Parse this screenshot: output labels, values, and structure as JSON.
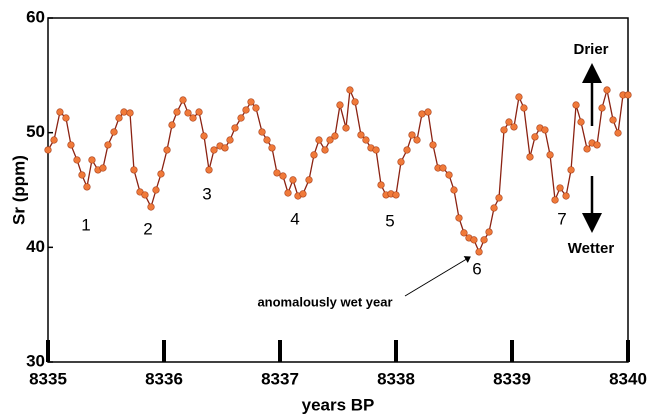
{
  "chart_data": {
    "type": "line",
    "xlabel": "years BP",
    "ylabel": "Sr (ppm)",
    "x": [
      8335,
      8335.052,
      8335.103,
      8335.155,
      8335.198,
      8335.25,
      8335.293,
      8335.336,
      8335.379,
      8335.431,
      8335.474,
      8335.517,
      8335.569,
      8335.612,
      8335.655,
      8335.707,
      8335.741,
      8335.793,
      8335.836,
      8335.888,
      8335.931,
      8335.974,
      8336.026,
      8336.069,
      8336.112,
      8336.164,
      8336.207,
      8336.25,
      8336.302,
      8336.345,
      8336.388,
      8336.431,
      8336.483,
      8336.526,
      8336.569,
      8336.612,
      8336.664,
      8336.707,
      8336.75,
      8336.793,
      8336.845,
      8336.888,
      8336.931,
      8336.974,
      8337.026,
      8337.069,
      8337.112,
      8337.155,
      8337.198,
      8337.25,
      8337.293,
      8337.336,
      8337.388,
      8337.431,
      8337.474,
      8337.517,
      8337.569,
      8337.603,
      8337.647,
      8337.698,
      8337.741,
      8337.784,
      8337.828,
      8337.871,
      8337.914,
      8337.957,
      8338,
      8338.043,
      8338.095,
      8338.138,
      8338.181,
      8338.224,
      8338.276,
      8338.319,
      8338.362,
      8338.405,
      8338.457,
      8338.5,
      8338.543,
      8338.586,
      8338.629,
      8338.672,
      8338.716,
      8338.759,
      8338.802,
      8338.845,
      8338.888,
      8338.931,
      8338.974,
      8339.017,
      8339.06,
      8339.103,
      8339.155,
      8339.198,
      8339.241,
      8339.284,
      8339.328,
      8339.371,
      8339.414,
      8339.466,
      8339.509,
      8339.552,
      8339.595,
      8339.647,
      8339.69,
      8339.733,
      8339.776,
      8339.819,
      8339.871,
      8339.914,
      8339.957,
      8340
    ],
    "series": [
      {
        "color": "#f07a3a",
        "line_color": "#8b2212",
        "values": [
          48.49,
          49.36,
          51.8,
          51.28,
          48.93,
          47.62,
          46.31,
          45.27,
          47.62,
          46.75,
          46.92,
          48.93,
          50.06,
          51.28,
          51.8,
          51.72,
          46.75,
          44.83,
          44.57,
          43.52,
          45.0,
          46.4,
          48.49,
          50.67,
          51.8,
          52.85,
          51.72,
          51.28,
          51.8,
          49.71,
          46.75,
          48.49,
          48.84,
          48.67,
          49.36,
          50.41,
          51.28,
          51.98,
          52.68,
          52.15,
          50.06,
          49.36,
          48.67,
          46.49,
          46.22,
          44.74,
          45.88,
          44.48,
          44.66,
          45.88,
          48.06,
          49.36,
          48.49,
          49.36,
          49.71,
          52.41,
          50.41,
          53.72,
          52.68,
          49.8,
          49.36,
          48.67,
          48.49,
          45.44,
          44.57,
          44.66,
          44.57,
          47.45,
          48.49,
          49.8,
          49.36,
          51.63,
          51.8,
          48.93,
          46.92,
          46.92,
          46.31,
          45.0,
          42.56,
          41.26,
          40.82,
          40.65,
          39.6,
          40.65,
          41.34,
          43.43,
          44.31,
          50.24,
          50.93,
          50.5,
          53.11,
          52.15,
          47.88,
          49.63,
          50.41,
          50.24,
          48.06,
          44.13,
          45.18,
          44.48,
          46.75,
          52.41,
          50.93,
          48.58,
          49.1,
          48.93,
          52.15,
          53.72,
          51.11,
          49.97,
          53.29,
          53.29
        ]
      }
    ],
    "xlim": [
      8335,
      8340
    ],
    "ylim": [
      30,
      60
    ],
    "xticks": [
      8335,
      8336,
      8337,
      8338,
      8339,
      8340
    ],
    "yticks": [
      30,
      40,
      50,
      60
    ],
    "annotations": [
      "1",
      "2",
      "3",
      "4",
      "5",
      "6",
      "7",
      "anomalously wet year",
      "Drier",
      "Wetter"
    ]
  }
}
